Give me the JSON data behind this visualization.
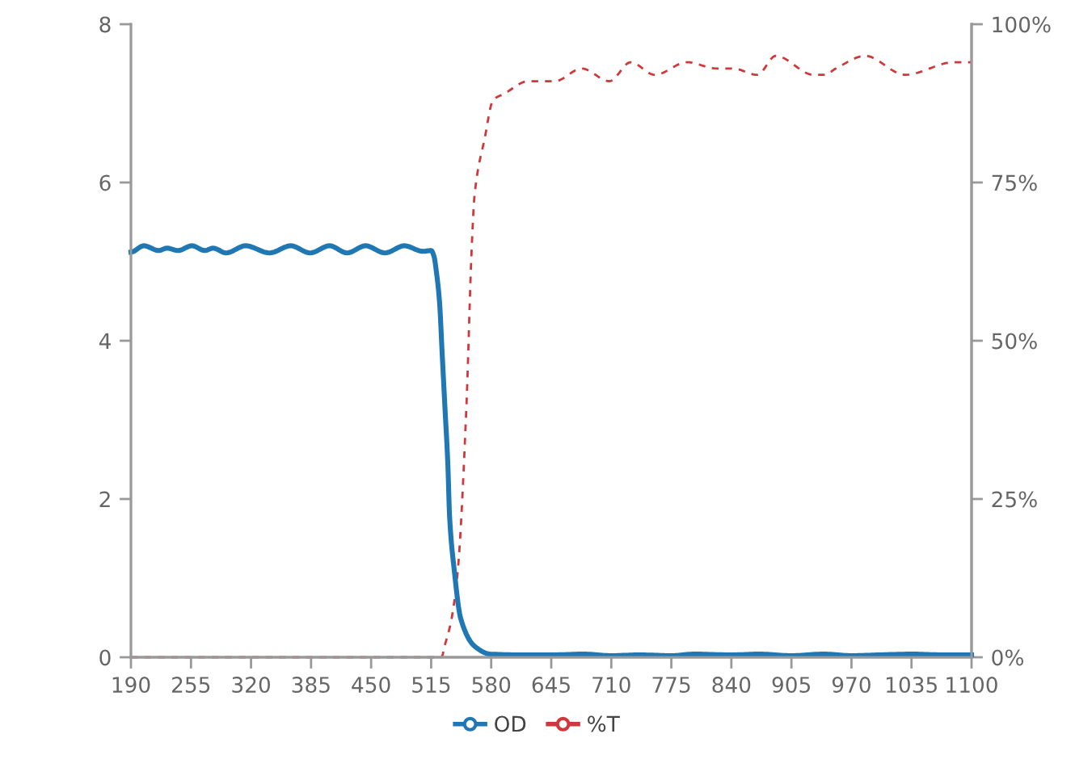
{
  "chart_data": {
    "type": "line",
    "xlim": [
      190,
      1100
    ],
    "xticks": [
      190,
      255,
      320,
      385,
      450,
      515,
      580,
      645,
      710,
      775,
      840,
      905,
      970,
      1035,
      1100
    ],
    "ylim": [
      0,
      8
    ],
    "yticks": [
      0,
      2,
      4,
      6,
      8
    ],
    "y2lim": [
      0,
      100
    ],
    "y2ticks": [
      {
        "value": 0,
        "label": "0%"
      },
      {
        "value": 25,
        "label": "25%"
      },
      {
        "value": 50,
        "label": "50%"
      },
      {
        "value": 75,
        "label": "75%"
      },
      {
        "value": 100,
        "label": "100%"
      }
    ],
    "grid": false,
    "legend": "bottom",
    "series": [
      {
        "name": "OD",
        "color": "#1f77b4",
        "line_style": "solid",
        "x": [
          190,
          204,
          220,
          229,
          241,
          256,
          270,
          279,
          293,
          314,
          340,
          363,
          384,
          405,
          424,
          444,
          465,
          486,
          506,
          515,
          518,
          521,
          524,
          527,
          530,
          533,
          535,
          540,
          547,
          562,
          579,
          614,
          645,
          680,
          710,
          740,
          775,
          800,
          840,
          870,
          905,
          940,
          970,
          1000,
          1035,
          1070,
          1100
        ],
        "values": [
          5.12,
          5.2,
          5.14,
          5.17,
          5.14,
          5.2,
          5.14,
          5.17,
          5.11,
          5.2,
          5.11,
          5.2,
          5.11,
          5.2,
          5.11,
          5.2,
          5.11,
          5.2,
          5.13,
          5.14,
          5.07,
          4.84,
          4.5,
          3.82,
          3.14,
          2.46,
          1.77,
          1.1,
          0.49,
          0.14,
          0.04,
          0.03,
          0.03,
          0.04,
          0.02,
          0.03,
          0.02,
          0.04,
          0.03,
          0.04,
          0.02,
          0.04,
          0.02,
          0.03,
          0.04,
          0.03,
          0.03
        ]
      },
      {
        "name": "%T",
        "color": "#d0383c",
        "line_style": "dashed",
        "axis": "y2",
        "x": [
          190,
          526,
          530,
          537,
          544,
          553,
          559,
          562,
          573,
          582,
          594,
          620,
          649,
          678,
          708,
          731,
          757,
          792,
          824,
          842,
          868,
          888,
          929,
          941,
          953,
          985,
          1028,
          1081,
          1100
        ],
        "values": [
          0,
          0,
          2,
          6,
          14,
          39,
          65,
          73,
          82,
          88,
          89,
          91,
          91,
          93,
          91,
          94,
          92,
          94,
          93,
          93,
          92,
          95,
          92,
          92,
          93,
          95,
          92,
          94,
          94
        ]
      }
    ]
  }
}
